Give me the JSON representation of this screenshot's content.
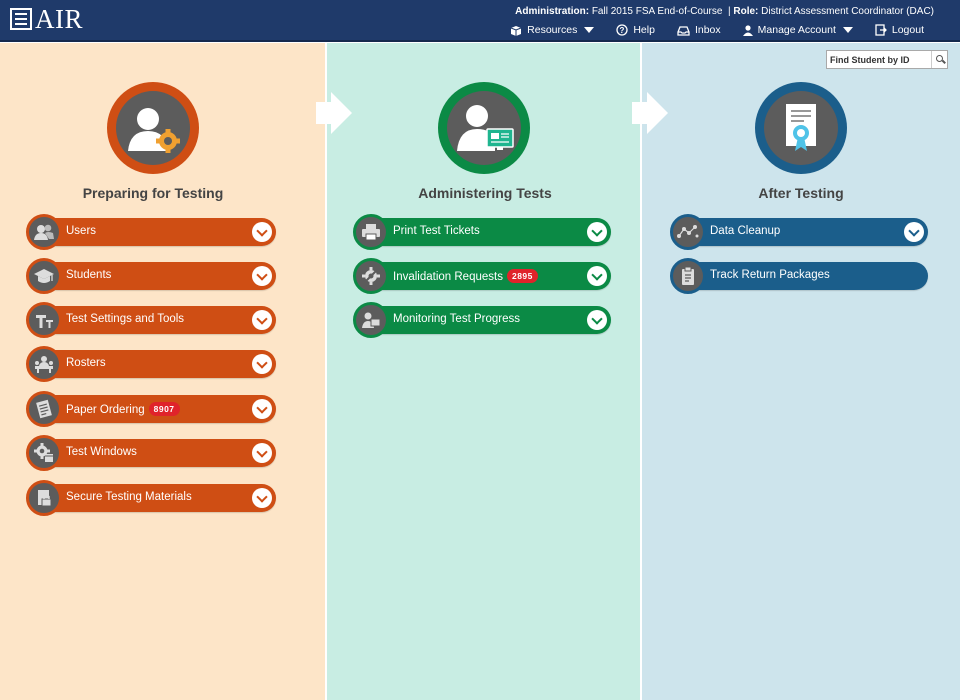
{
  "header": {
    "logo_text": "AIR",
    "admin_label": "Administration:",
    "admin_value": "Fall 2015 FSA End-of-Course",
    "role_label": "Role:",
    "role_value": "District Assessment Coordinator (DAC)",
    "separator": "|",
    "nav": {
      "resources": "Resources",
      "help": "Help",
      "inbox": "Inbox",
      "manage_account": "Manage Account",
      "logout": "Logout"
    },
    "background_color": "#1f3a6a"
  },
  "search": {
    "placeholder": "Find Student by ID"
  },
  "columns": [
    {
      "title": "Preparing for Testing",
      "color": "#cf4e14",
      "background": "#fde5c8",
      "icon": "user-gear-icon",
      "items": [
        {
          "label": "Users",
          "icon": "users-icon"
        },
        {
          "label": "Students",
          "icon": "graduation-cap-icon"
        },
        {
          "label": "Test Settings and Tools",
          "icon": "tools-icon"
        },
        {
          "label": "Rosters",
          "icon": "classroom-icon"
        },
        {
          "label": "Paper Ordering",
          "icon": "paper-order-icon",
          "badge": "8907"
        },
        {
          "label": "Test Windows",
          "icon": "calendar-gear-icon"
        },
        {
          "label": "Secure Testing Materials",
          "icon": "secure-document-icon"
        }
      ]
    },
    {
      "title": "Administering Tests",
      "color": "#0b8a45",
      "background": "#c8ede3",
      "icon": "user-monitor-icon",
      "items": [
        {
          "label": "Print Test Tickets",
          "icon": "printer-icon"
        },
        {
          "label": "Invalidation Requests",
          "icon": "invalidation-icon",
          "badge": "2895"
        },
        {
          "label": "Monitoring Test Progress",
          "icon": "monitor-progress-icon"
        }
      ]
    },
    {
      "title": "After Testing",
      "color": "#1b5e8b",
      "background": "#cde4ec",
      "icon": "certificate-icon",
      "items": [
        {
          "label": "Data Cleanup",
          "icon": "data-cleanup-icon",
          "expandable": true
        },
        {
          "label": "Track Return Packages",
          "icon": "clipboard-icon",
          "expandable": false
        }
      ]
    }
  ]
}
